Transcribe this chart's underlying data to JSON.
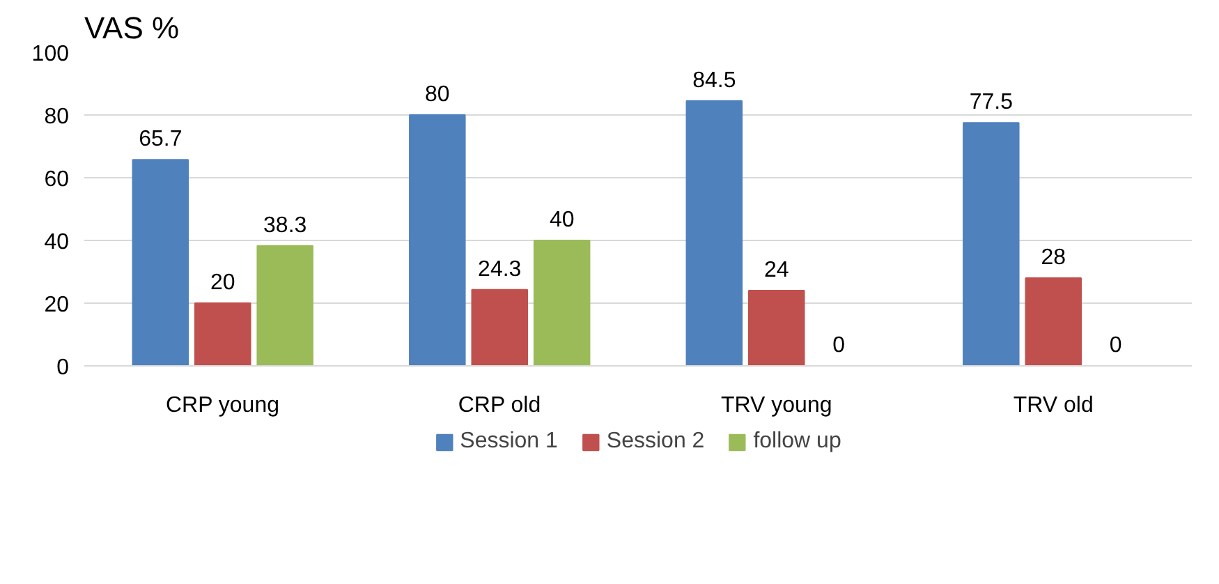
{
  "chart_data": {
    "type": "bar",
    "title": "VAS %",
    "categories": [
      "CRP young",
      "CRP old",
      "TRV young",
      "TRV old"
    ],
    "series": [
      {
        "name": "Session 1",
        "color": "#4f81bd",
        "values": [
          65.7,
          80,
          84.5,
          77.5
        ]
      },
      {
        "name": "Session 2",
        "color": "#c0504d",
        "values": [
          20,
          24.3,
          24,
          28
        ]
      },
      {
        "name": "follow up",
        "color": "#9bbb59",
        "values": [
          38.3,
          40,
          0,
          0
        ]
      }
    ],
    "ylim": [
      0,
      100
    ],
    "yticks": [
      0,
      20,
      40,
      60,
      80,
      100
    ],
    "grid": "y",
    "legend": "bottom",
    "data_labels": true
  }
}
